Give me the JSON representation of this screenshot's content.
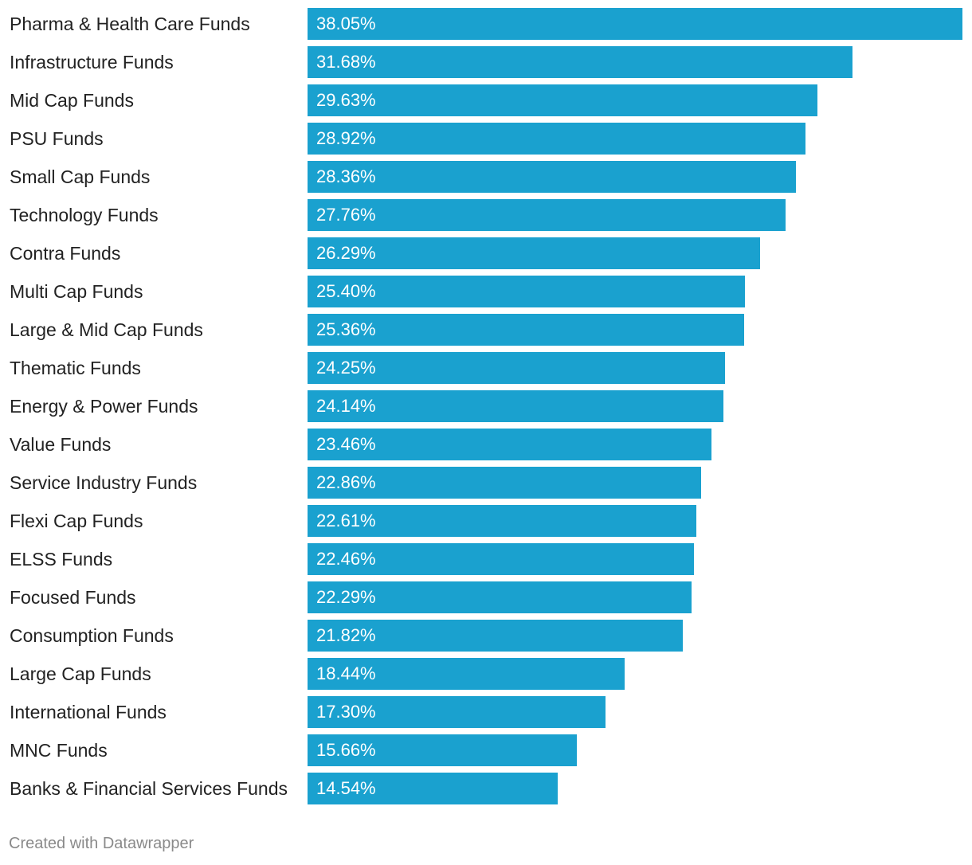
{
  "chart_data": {
    "type": "bar",
    "orientation": "horizontal",
    "title": "",
    "xlabel": "",
    "ylabel": "",
    "value_suffix": "%",
    "xlim": [
      0,
      38.05
    ],
    "categories": [
      "Pharma & Health Care Funds",
      "Infrastructure Funds",
      "Mid Cap Funds",
      "PSU Funds",
      "Small Cap Funds",
      "Technology Funds",
      "Contra Funds",
      "Multi Cap Funds",
      "Large & Mid Cap Funds",
      "Thematic Funds",
      "Energy & Power Funds",
      "Value Funds",
      "Service Industry Funds",
      "Flexi Cap Funds",
      "ELSS Funds",
      "Focused Funds",
      "Consumption Funds",
      "Large Cap Funds",
      "International Funds",
      "MNC Funds",
      "Banks & Financial Services Funds"
    ],
    "values": [
      38.05,
      31.68,
      29.63,
      28.92,
      28.36,
      27.76,
      26.29,
      25.4,
      25.36,
      24.25,
      24.14,
      23.46,
      22.86,
      22.61,
      22.46,
      22.29,
      21.82,
      18.44,
      17.3,
      15.66,
      14.54
    ],
    "value_labels": [
      "38.05%",
      "31.68%",
      "29.63%",
      "28.92%",
      "28.36%",
      "27.76%",
      "26.29%",
      "25.40%",
      "25.36%",
      "24.25%",
      "24.14%",
      "23.46%",
      "22.86%",
      "22.61%",
      "22.46%",
      "22.29%",
      "21.82%",
      "18.44%",
      "17.30%",
      "15.66%",
      "14.54%"
    ],
    "bar_color": "#1aa1cf"
  },
  "footer": {
    "credit": "Created with Datawrapper"
  }
}
